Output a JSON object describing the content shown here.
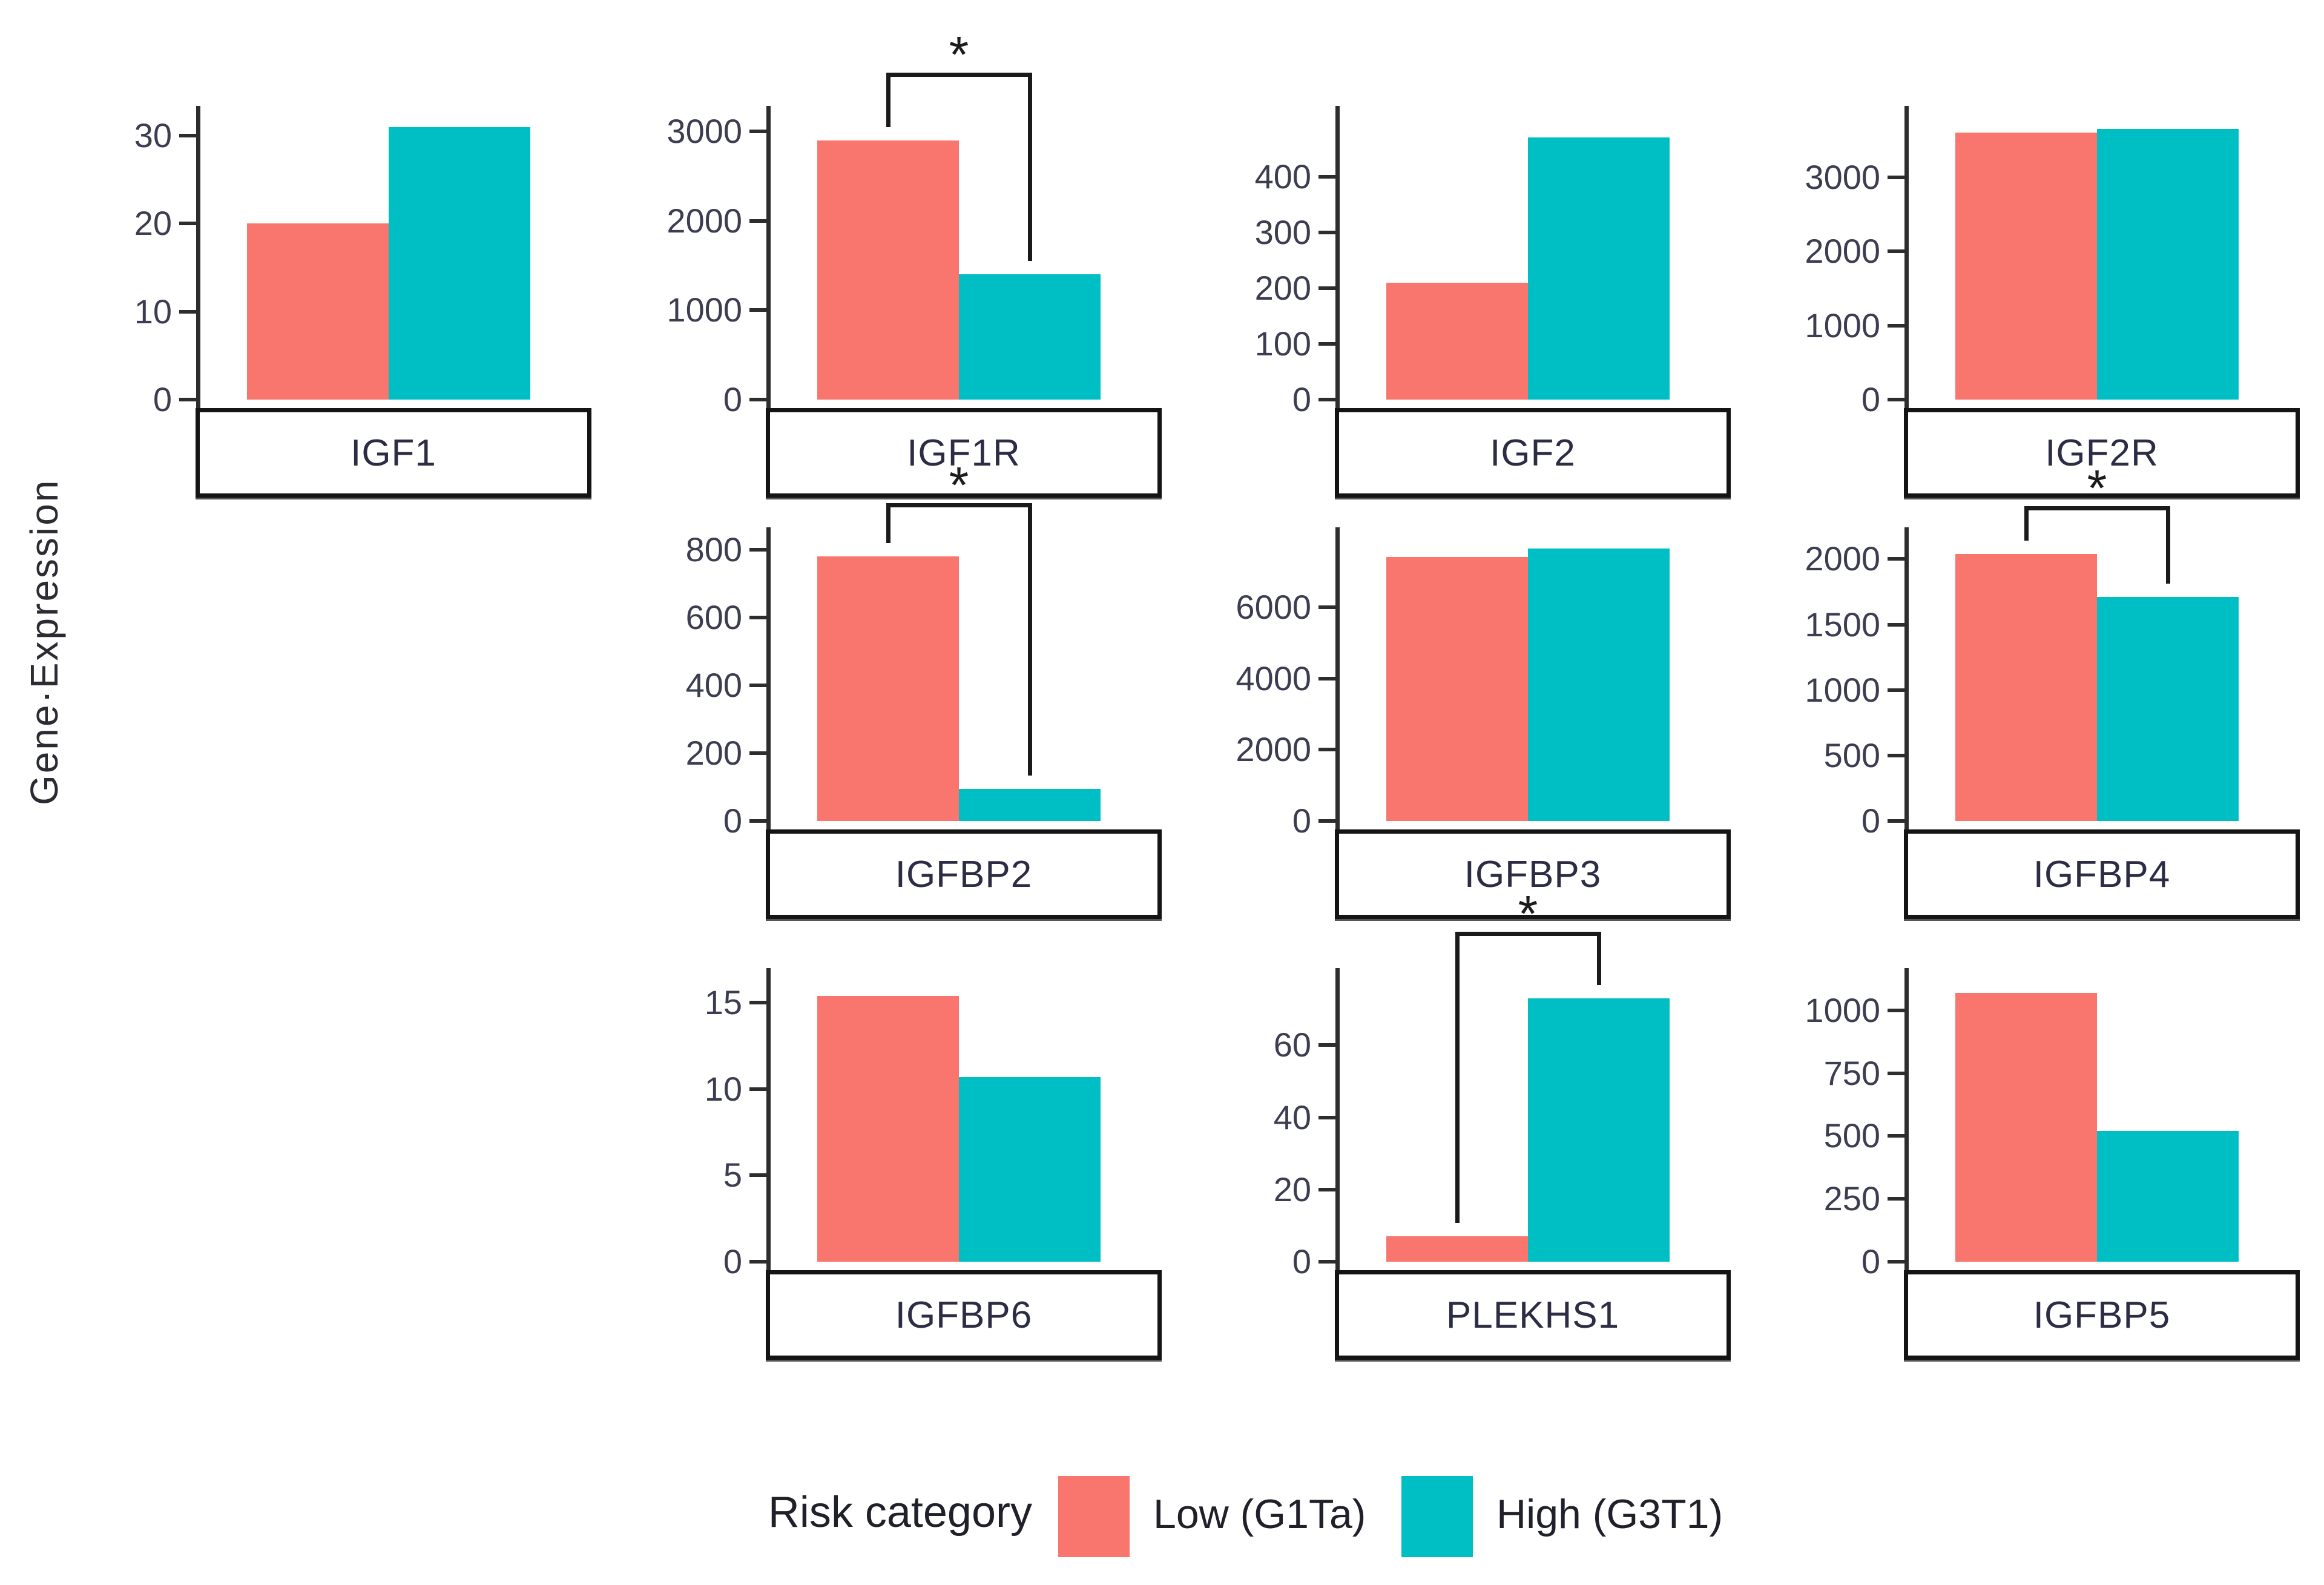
{
  "figure": {
    "y_axis_label": "Gene·Expression",
    "significance_marker": "*",
    "colors": {
      "low": "#F8766D",
      "high": "#00BFC4",
      "axis": "#2d2d2d",
      "strip_border": "#141414",
      "text": "#3d3d52"
    },
    "legend": {
      "title": "Risk category",
      "items": [
        {
          "label": "Low (G1Ta)",
          "color": "#F8766D"
        },
        {
          "label": "High (G3T1)",
          "color": "#00BFC4"
        }
      ]
    }
  },
  "chart_data": {
    "type": "bar",
    "title": "",
    "ylabel": "Gene·Expression",
    "xlabel": "",
    "grid": false,
    "legend_position": "bottom",
    "series_names": [
      "Low (G1Ta)",
      "High (G3T1)"
    ],
    "facets": [
      {
        "gene": "IGF1",
        "row": 0,
        "col": 0,
        "low": 20,
        "high": 31,
        "yticks": [
          0,
          10,
          20,
          30
        ],
        "ylim": [
          0,
          32
        ],
        "significant": false
      },
      {
        "gene": "IGF1R",
        "row": 0,
        "col": 1,
        "low": 2900,
        "high": 1400,
        "yticks": [
          0,
          1000,
          2000,
          3000
        ],
        "ylim": [
          0,
          3150
        ],
        "significant": true
      },
      {
        "gene": "IGF2",
        "row": 0,
        "col": 2,
        "low": 210,
        "high": 470,
        "yticks": [
          0,
          100,
          200,
          300,
          400
        ],
        "ylim": [
          0,
          505
        ],
        "significant": false
      },
      {
        "gene": "IGF2R",
        "row": 0,
        "col": 3,
        "low": 3600,
        "high": 3650,
        "yticks": [
          0,
          1000,
          2000,
          3000
        ],
        "ylim": [
          0,
          3800
        ],
        "significant": false
      },
      {
        "gene": "IGFBP2",
        "row": 1,
        "col": 1,
        "low": 780,
        "high": 95,
        "yticks": [
          0,
          200,
          400,
          600,
          800
        ],
        "ylim": [
          0,
          830
        ],
        "significant": true
      },
      {
        "gene": "IGFBP3",
        "row": 1,
        "col": 2,
        "low": 7400,
        "high": 7650,
        "yticks": [
          0,
          2000,
          4000,
          6000
        ],
        "ylim": [
          0,
          7900
        ],
        "significant": false
      },
      {
        "gene": "IGFBP4",
        "row": 1,
        "col": 3,
        "low": 2040,
        "high": 1710,
        "yticks": [
          0,
          500,
          1000,
          1500,
          2000
        ],
        "ylim": [
          0,
          2150
        ],
        "significant": true
      },
      {
        "gene": "IGFBP6",
        "row": 2,
        "col": 1,
        "low": 15.4,
        "high": 10.7,
        "yticks": [
          0,
          5,
          10,
          15
        ],
        "ylim": [
          0,
          16.3
        ],
        "significant": false
      },
      {
        "gene": "PLEKHS1",
        "row": 2,
        "col": 2,
        "low": 7,
        "high": 73,
        "yticks": [
          0,
          20,
          40,
          60
        ],
        "ylim": [
          0,
          78
        ],
        "significant": true
      },
      {
        "gene": "IGFBP5",
        "row": 2,
        "col": 3,
        "low": 1070,
        "high": 520,
        "yticks": [
          0,
          250,
          500,
          750,
          1000
        ],
        "ylim": [
          0,
          1120
        ],
        "significant": false
      }
    ]
  }
}
